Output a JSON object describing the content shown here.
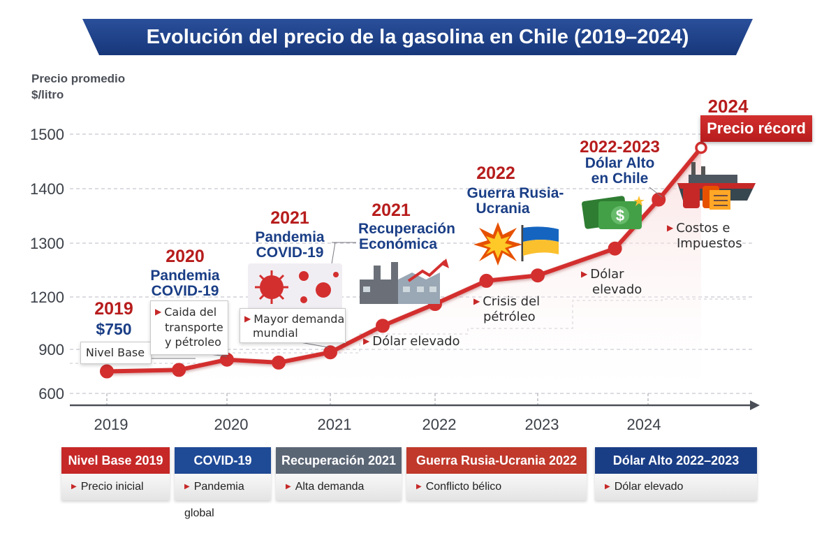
{
  "title": "Evolución del precio de la gasolina en Chile (2019–2024)",
  "axis": {
    "ylabel_line1": "Precio promedio",
    "ylabel_line2": "$/litro"
  },
  "chart_data": {
    "type": "line",
    "title": "Evolución del precio de la gasolina en Chile (2019–2024)",
    "ylabel": "Precio promedio $/litro",
    "xlabel": "",
    "x_ticks": [
      "2019",
      "2020",
      "2021",
      "2022",
      "2023",
      "2024"
    ],
    "y_ticks": [
      "600",
      "900",
      "1200",
      "1300",
      "1400",
      "1500"
    ],
    "series": [
      {
        "name": "Precio gasolina",
        "color": "#d32f2f",
        "x": [
          2019.0,
          2019.6,
          2020.0,
          2020.5,
          2021.0,
          2021.5,
          2022.0,
          2022.5,
          2023.0,
          2023.7,
          2024.1,
          2024.5
        ],
        "values": [
          750,
          760,
          830,
          810,
          880,
          1035,
          1160,
          1230,
          1240,
          1290,
          1380,
          1475
        ]
      }
    ]
  },
  "events": {
    "e2019": {
      "year": "2019",
      "value": "$750",
      "note": "Nivel Base"
    },
    "e2020": {
      "year": "2020",
      "title1": "Pandemia",
      "title2": "COVID-19",
      "note1": "Caida del",
      "note2": "transporte",
      "note3": "y pétroleo"
    },
    "e2021a": {
      "year": "2021",
      "title1": "Pandemia",
      "title2": "COVID-19",
      "note1": "Mayor demanda",
      "note2": "mundial"
    },
    "e2021b": {
      "year": "2021",
      "title1": "Recuperación",
      "title2": "Económica",
      "note": "Dólar elevado"
    },
    "e2022": {
      "year": "2022",
      "title1": "Guerra Rusia-",
      "title2": "Ucrania",
      "note1": "Crisis del",
      "note2": "pétróleo"
    },
    "e2023": {
      "year": "2022-2023",
      "title1": "Dólar Alto",
      "title2": "en Chile",
      "note1": "Dólar",
      "note2": "elevado"
    },
    "e2024": {
      "year": "2024",
      "badge": "Precio récord",
      "note1": "Costos e",
      "note2": "Impuestos"
    }
  },
  "categories": [
    {
      "header": "Nivel Base 2019",
      "item": "Precio inicial",
      "color": "#c62828"
    },
    {
      "header": "COVID-19",
      "item": "Pandemia global",
      "color": "#1f4a96"
    },
    {
      "header": "Recuperación 2021",
      "item": "Alta demanda",
      "color": "#5b6675"
    },
    {
      "header": "Guerra Rusia-Ucrania 2022",
      "item": "Conflicto bélico",
      "color": "#c0392b"
    },
    {
      "header": "Dólar Alto 2022–2023",
      "item": "Dólar elevado",
      "color": "#1a3e86"
    }
  ],
  "icons": [
    "virus-icon",
    "factory-icon",
    "explosion-icon",
    "ukraine-flag-icon",
    "money-icon",
    "oil-tanker-icon"
  ]
}
